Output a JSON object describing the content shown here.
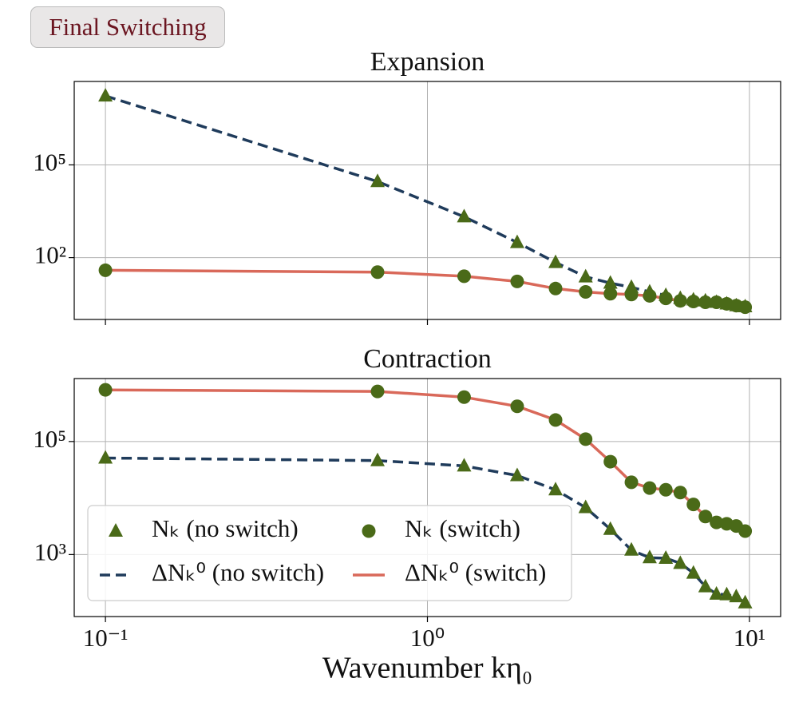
{
  "button": "Final Switching",
  "chart_data": [
    {
      "type": "line",
      "title": "Expansion",
      "log_x": true,
      "log_y": true,
      "grid": true,
      "xlim": [
        0.08,
        12.5
      ],
      "ylim": [
        1,
        50000000
      ],
      "yticks": [
        {
          "value": 100,
          "label": "10²"
        },
        {
          "value": 100000,
          "label": "10⁵"
        }
      ],
      "x": [
        0.1,
        0.7,
        1.3,
        1.9,
        2.5,
        3.1,
        3.7,
        4.3,
        4.9,
        5.5,
        6.1,
        6.7,
        7.3,
        7.9,
        8.5,
        9.1,
        9.7
      ],
      "series": [
        {
          "style": "dashed",
          "color": "#1f3b5b",
          "values": [
            17000000,
            29000,
            2100,
            310,
            70,
            24,
            15,
            11,
            7.8,
            6,
            4.8,
            4.3,
            4,
            3.6,
            3.2,
            2.8,
            2.6
          ]
        },
        {
          "style": "solid",
          "color": "#d9695a",
          "values": [
            39,
            34,
            25,
            17,
            10,
            7.8,
            6.8,
            6.4,
            5.8,
            4.8,
            4,
            3.8,
            3.6,
            3.6,
            3.2,
            2.8,
            2.5
          ]
        },
        {
          "style": "triangle",
          "color": "#4a6a18",
          "values": [
            17000000,
            29000,
            2100,
            310,
            70,
            24,
            15,
            11,
            7.8,
            6,
            4.8,
            4.3,
            4,
            3.6,
            3.2,
            2.8,
            2.6
          ]
        },
        {
          "style": "circle",
          "color": "#4a6a18",
          "values": [
            39,
            34,
            25,
            17,
            10,
            7.8,
            6.8,
            6.4,
            5.8,
            4.8,
            4,
            3.8,
            3.6,
            3.6,
            3.2,
            2.8,
            2.5
          ]
        }
      ]
    },
    {
      "type": "line",
      "title": "Contraction",
      "x_label": "Wavenumber kη₀",
      "log_x": true,
      "log_y": true,
      "grid": true,
      "legend": "lower left",
      "xlim": [
        0.08,
        12.5
      ],
      "ylim": [
        80,
        1300000
      ],
      "xticks": [
        {
          "value": 0.1,
          "label": "10⁻¹"
        },
        {
          "value": 1,
          "label": "10⁰"
        },
        {
          "value": 10,
          "label": "10¹"
        }
      ],
      "yticks": [
        {
          "value": 1000,
          "label": "10³"
        },
        {
          "value": 100000,
          "label": "10⁵"
        }
      ],
      "x": [
        0.1,
        0.7,
        1.3,
        1.9,
        2.5,
        3.1,
        3.7,
        4.3,
        4.9,
        5.5,
        6.1,
        6.7,
        7.3,
        7.9,
        8.5,
        9.1,
        9.7
      ],
      "series": [
        {
          "name": "Nₖ (no switch)",
          "style": "triangle",
          "color": "#4a6a18",
          "values": [
            51000,
            46000,
            37000,
            25000,
            14000,
            6800,
            2800,
            1200,
            880,
            860,
            700,
            470,
            270,
            200,
            195,
            180,
            140
          ]
        },
        {
          "name": "Nₖ (switch)",
          "style": "circle",
          "color": "#4a6a18",
          "values": [
            820000,
            770000,
            610000,
            420000,
            240000,
            110000,
            44000,
            19000,
            15000,
            14000,
            12500,
            7700,
            4700,
            3700,
            3500,
            3200,
            2600
          ]
        },
        {
          "name": "ΔNₖ⁰ (no switch)",
          "style": "dashed",
          "color": "#1f3b5b",
          "values": [
            51000,
            46000,
            37000,
            25000,
            14000,
            6800,
            2800,
            1200,
            880,
            860,
            700,
            470,
            270,
            200,
            195,
            180,
            140
          ]
        },
        {
          "name": "ΔNₖ⁰ (switch)",
          "style": "solid",
          "color": "#d9695a",
          "values": [
            820000,
            770000,
            610000,
            420000,
            240000,
            110000,
            44000,
            19000,
            15000,
            14000,
            12500,
            7700,
            4700,
            3700,
            3500,
            3200,
            2600
          ]
        }
      ]
    }
  ]
}
